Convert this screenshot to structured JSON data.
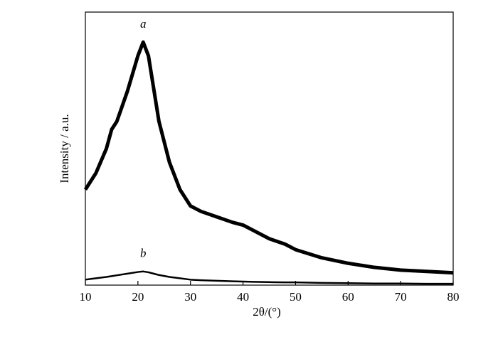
{
  "chart_data": {
    "type": "line",
    "xlabel": "2θ/(°)",
    "ylabel": "Intensity / a.u.",
    "x": [
      10,
      12,
      14,
      15,
      16,
      18,
      20,
      21,
      22,
      23,
      24,
      26,
      28,
      30,
      32,
      35,
      38,
      40,
      42,
      45,
      48,
      50,
      55,
      60,
      65,
      70,
      75,
      80
    ],
    "series": [
      {
        "name": "a",
        "color": "#000000",
        "values": [
          35,
          41,
          50,
          57,
          60,
          71,
          84,
          89,
          84,
          72,
          60,
          45,
          35,
          29,
          27,
          25,
          23,
          22,
          20,
          17,
          15,
          13,
          10,
          8,
          6.5,
          5.5,
          5,
          4.5
        ]
      },
      {
        "name": "b",
        "color": "#000000",
        "values": [
          2,
          2.5,
          3,
          3.3,
          3.6,
          4.2,
          4.8,
          5,
          4.7,
          4.2,
          3.7,
          3,
          2.5,
          2,
          1.8,
          1.6,
          1.4,
          1.3,
          1.2,
          1.1,
          1,
          1,
          0.8,
          0.7,
          0.6,
          0.6,
          0.5,
          0.5
        ]
      }
    ],
    "xlim": [
      10,
      80
    ],
    "xticks": [
      10,
      20,
      30,
      40,
      50,
      60,
      70,
      80
    ],
    "ylim": [
      0,
      100
    ]
  }
}
